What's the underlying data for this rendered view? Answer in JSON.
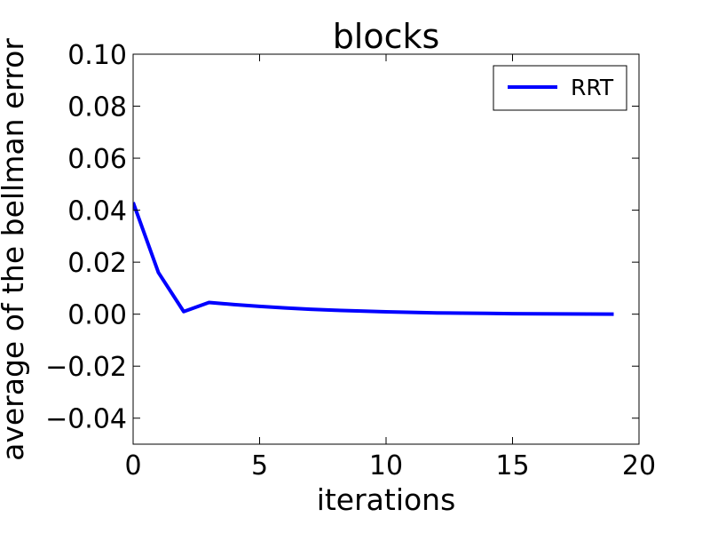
{
  "chart_data": {
    "type": "line",
    "title": "blocks",
    "xlabel": "iterations",
    "ylabel": "average of the bellman error",
    "xlim": [
      0,
      20
    ],
    "ylim": [
      -0.05,
      0.1
    ],
    "xticks": [
      0,
      5,
      10,
      15,
      20
    ],
    "xtick_labels": [
      "0",
      "5",
      "10",
      "15",
      "20"
    ],
    "yticks": [
      -0.04,
      -0.02,
      0.0,
      0.02,
      0.04,
      0.06,
      0.08,
      0.1
    ],
    "ytick_labels": [
      "−0.04",
      "−0.02",
      "0.00",
      "0.02",
      "0.04",
      "0.06",
      "0.08",
      "0.10"
    ],
    "grid": false,
    "legend_position": "top-right",
    "series": [
      {
        "name": "RRT",
        "color": "#0000ff",
        "x": [
          0,
          1,
          2,
          3,
          4,
          5,
          6,
          7,
          8,
          9,
          10,
          11,
          12,
          13,
          14,
          15,
          16,
          17,
          18,
          19
        ],
        "y": [
          0.043,
          0.016,
          0.001,
          0.0045,
          0.0037,
          0.003,
          0.0024,
          0.0019,
          0.0015,
          0.0012,
          0.0009,
          0.0007,
          0.0005,
          0.0004,
          0.0003,
          0.0002,
          0.00015,
          0.0001,
          5e-05,
          0.0
        ]
      }
    ]
  }
}
